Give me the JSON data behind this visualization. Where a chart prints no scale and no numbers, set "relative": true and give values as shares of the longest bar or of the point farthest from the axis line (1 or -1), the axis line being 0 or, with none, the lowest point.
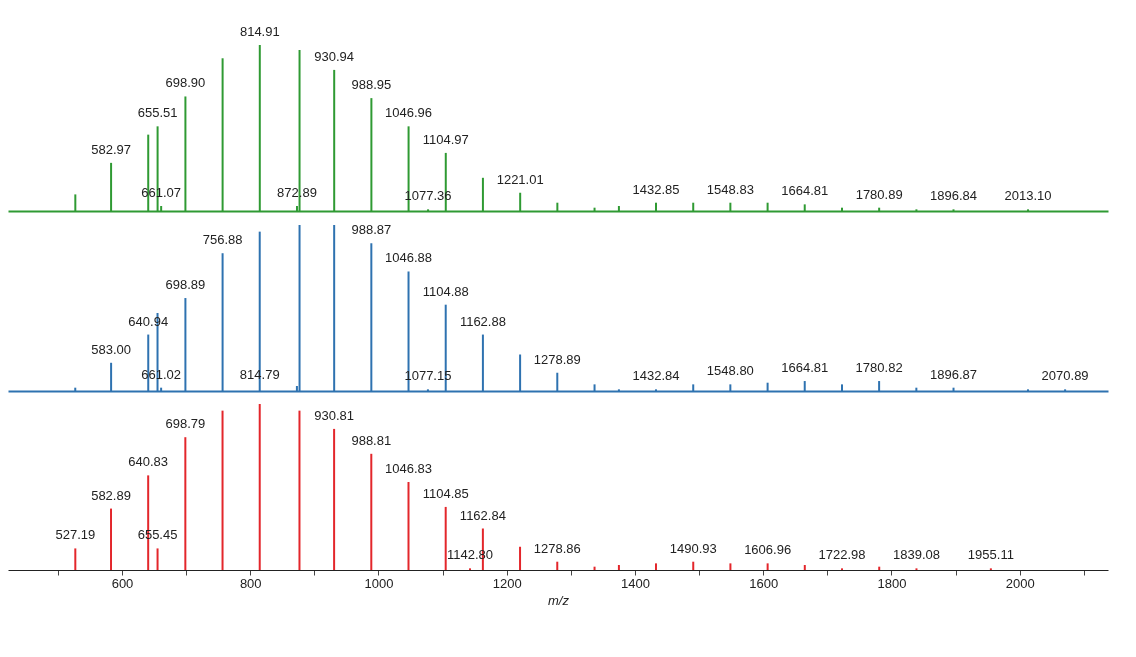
{
  "chart_data": [
    {
      "type": "bar",
      "relative": true,
      "color": "#2f9a33",
      "tick_labels": false,
      "xlim": [
        430,
        2130
      ],
      "xticks": [
        {
          "value": 600,
          "label": null
        },
        {
          "value": 800,
          "label": null
        },
        {
          "value": 1000,
          "label": null
        },
        {
          "value": 1200,
          "label": null
        },
        {
          "value": 1400,
          "label": null
        },
        {
          "value": 1600,
          "label": null
        },
        {
          "value": 1800,
          "label": null
        },
        {
          "value": 2000,
          "label": null
        }
      ],
      "x": [
        527.2,
        582.97,
        640.9,
        655.51,
        661.07,
        698.9,
        756.9,
        814.91,
        872.89,
        876.9,
        930.94,
        988.95,
        1046.96,
        1077.36,
        1104.97,
        1162.9,
        1221.01,
        1279,
        1337,
        1375,
        1432.85,
        1490.9,
        1548.83,
        1606.9,
        1664.81,
        1722.9,
        1780.89,
        1839,
        1896.84,
        2013.1
      ],
      "values": [
        0.1,
        0.29,
        0.46,
        0.51,
        0.03,
        0.69,
        0.92,
        1,
        0.03,
        0.97,
        0.85,
        0.68,
        0.51,
        0.01,
        0.35,
        0.2,
        0.11,
        0.05,
        0.02,
        0.03,
        0.05,
        0.05,
        0.05,
        0.05,
        0.04,
        0.02,
        0.02,
        0.01,
        0.01,
        0.01
      ],
      "annotations": [
        {
          "text": "582.97",
          "x": 582.97,
          "y": 0.29
        },
        {
          "text": "655.51",
          "x": 655.51,
          "y": 0.51
        },
        {
          "text": "661.07",
          "x": 661.07,
          "y": 0.03
        },
        {
          "text": "698.90",
          "x": 698.9,
          "y": 0.69
        },
        {
          "text": "814.91",
          "x": 814.91,
          "y": 1
        },
        {
          "text": "872.89",
          "x": 872.89,
          "y": 0.03
        },
        {
          "text": "930.94",
          "x": 930.94,
          "y": 0.85
        },
        {
          "text": "988.95",
          "x": 988.95,
          "y": 0.68
        },
        {
          "text": "1046.96",
          "x": 1046.96,
          "y": 0.51
        },
        {
          "text": "1077.36",
          "x": 1077.36,
          "y": 0.01
        },
        {
          "text": "1104.97",
          "x": 1104.97,
          "y": 0.35
        },
        {
          "text": "1221.01",
          "x": 1221.01,
          "y": 0.11
        },
        {
          "text": "1432.85",
          "x": 1432.85,
          "y": 0.05
        },
        {
          "text": "1548.83",
          "x": 1548.83,
          "y": 0.05
        },
        {
          "text": "1664.81",
          "x": 1664.81,
          "y": 0.04
        },
        {
          "text": "1780.89",
          "x": 1780.89,
          "y": 0.02
        },
        {
          "text": "1896.84",
          "x": 1896.84,
          "y": 0.01
        },
        {
          "text": "2013.10",
          "x": 2013.1,
          "y": 0.01
        }
      ]
    },
    {
      "type": "bar",
      "relative": true,
      "color": "#2e72b0",
      "tick_labels": false,
      "xlim": [
        430,
        2130
      ],
      "xticks": [
        {
          "value": 600,
          "label": null
        },
        {
          "value": 800,
          "label": null
        },
        {
          "value": 1000,
          "label": null
        },
        {
          "value": 1200,
          "label": null
        },
        {
          "value": 1400,
          "label": null
        },
        {
          "value": 1600,
          "label": null
        },
        {
          "value": 1800,
          "label": null
        },
        {
          "value": 2000,
          "label": null
        }
      ],
      "x": [
        527.1,
        583.0,
        640.94,
        655.4,
        661.02,
        698.89,
        756.88,
        814.79,
        872.8,
        876.9,
        930.9,
        988.87,
        1046.88,
        1077.15,
        1104.88,
        1162.88,
        1220.9,
        1278.89,
        1337,
        1375,
        1432.84,
        1490.9,
        1548.8,
        1606.9,
        1664.81,
        1722.9,
        1780.82,
        1838.9,
        1896.87,
        2013,
        2070.89
      ],
      "values": [
        0.02,
        0.17,
        0.34,
        0.47,
        0.02,
        0.56,
        0.83,
        0.96,
        0.03,
        1,
        1,
        0.89,
        0.72,
        0.01,
        0.52,
        0.34,
        0.22,
        0.11,
        0.04,
        0.01,
        0.01,
        0.04,
        0.04,
        0.05,
        0.06,
        0.04,
        0.06,
        0.02,
        0.02,
        0.01,
        0.01
      ],
      "annotations": [
        {
          "text": "583.00",
          "x": 583.0,
          "y": 0.17
        },
        {
          "text": "640.94",
          "x": 640.94,
          "y": 0.34
        },
        {
          "text": "661.02",
          "x": 661.02,
          "y": 0.02
        },
        {
          "text": "698.89",
          "x": 698.89,
          "y": 0.56
        },
        {
          "text": "756.88",
          "x": 756.88,
          "y": 0.83
        },
        {
          "text": "814.79",
          "x": 814.79,
          "y": 0.02
        },
        {
          "text": "988.87",
          "x": 988.87,
          "y": 0.89
        },
        {
          "text": "1046.88",
          "x": 1046.88,
          "y": 0.72
        },
        {
          "text": "1077.15",
          "x": 1077.15,
          "y": 0.01
        },
        {
          "text": "1104.88",
          "x": 1104.88,
          "y": 0.52
        },
        {
          "text": "1162.88",
          "x": 1162.88,
          "y": 0.34
        },
        {
          "text": "1278.89",
          "x": 1278.89,
          "y": 0.11
        },
        {
          "text": "1432.84",
          "x": 1432.84,
          "y": 0.01
        },
        {
          "text": "1548.80",
          "x": 1548.8,
          "y": 0.04
        },
        {
          "text": "1664.81",
          "x": 1664.81,
          "y": 0.06
        },
        {
          "text": "1780.82",
          "x": 1780.82,
          "y": 0.06
        },
        {
          "text": "1896.87",
          "x": 1896.87,
          "y": 0.02
        },
        {
          "text": "2070.89",
          "x": 2070.89,
          "y": 0.01
        }
      ]
    },
    {
      "type": "bar",
      "relative": true,
      "color": "#e3262b",
      "xlabel": "m/z",
      "tick_labels": "x",
      "xlim": [
        430,
        2130
      ],
      "xticks": [
        {
          "value": 500,
          "label": null
        },
        600,
        {
          "value": 700,
          "label": null
        },
        800,
        {
          "value": 900,
          "label": null
        },
        1000,
        {
          "value": 1100,
          "label": null
        },
        1200,
        {
          "value": 1300,
          "label": null
        },
        1400,
        {
          "value": 1500,
          "label": null
        },
        1600,
        {
          "value": 1700,
          "label": null
        },
        1800,
        {
          "value": 1900,
          "label": null
        },
        2000,
        {
          "value": 2100,
          "label": null
        }
      ],
      "x": [
        527.19,
        582.89,
        640.83,
        655.45,
        698.79,
        756.8,
        814.8,
        876.8,
        930.81,
        988.81,
        1046.83,
        1104.85,
        1142.8,
        1162.84,
        1220.8,
        1278.86,
        1337,
        1375,
        1432.8,
        1490.93,
        1548.9,
        1606.96,
        1664.9,
        1722.98,
        1781,
        1839.08,
        1955.11
      ],
      "values": [
        0.13,
        0.37,
        0.57,
        0.13,
        0.8,
        0.96,
        1,
        0.96,
        0.85,
        0.7,
        0.53,
        0.38,
        0.01,
        0.25,
        0.14,
        0.05,
        0.02,
        0.03,
        0.04,
        0.05,
        0.04,
        0.04,
        0.03,
        0.01,
        0.02,
        0.01,
        0.01
      ],
      "annotations": [
        {
          "text": "527.19",
          "x": 527.19,
          "y": 0.13
        },
        {
          "text": "582.89",
          "x": 582.89,
          "y": 0.37
        },
        {
          "text": "640.83",
          "x": 640.83,
          "y": 0.57
        },
        {
          "text": "655.45",
          "x": 655.45,
          "y": 0.13
        },
        {
          "text": "698.79",
          "x": 698.79,
          "y": 0.8
        },
        {
          "text": "930.81",
          "x": 930.81,
          "y": 0.85
        },
        {
          "text": "988.81",
          "x": 988.81,
          "y": 0.7
        },
        {
          "text": "1046.83",
          "x": 1046.83,
          "y": 0.53
        },
        {
          "text": "1104.85",
          "x": 1104.85,
          "y": 0.38
        },
        {
          "text": "1142.80",
          "x": 1142.8,
          "y": 0.01
        },
        {
          "text": "1162.84",
          "x": 1162.84,
          "y": 0.25
        },
        {
          "text": "1278.86",
          "x": 1278.86,
          "y": 0.05
        },
        {
          "text": "1490.93",
          "x": 1490.93,
          "y": 0.05
        },
        {
          "text": "1606.96",
          "x": 1606.96,
          "y": 0.04
        },
        {
          "text": "1722.98",
          "x": 1722.98,
          "y": 0.01
        },
        {
          "text": "1839.08",
          "x": 1839.08,
          "y": 0.01
        },
        {
          "text": "1955.11",
          "x": 1955.11,
          "y": 0.01
        }
      ]
    }
  ]
}
